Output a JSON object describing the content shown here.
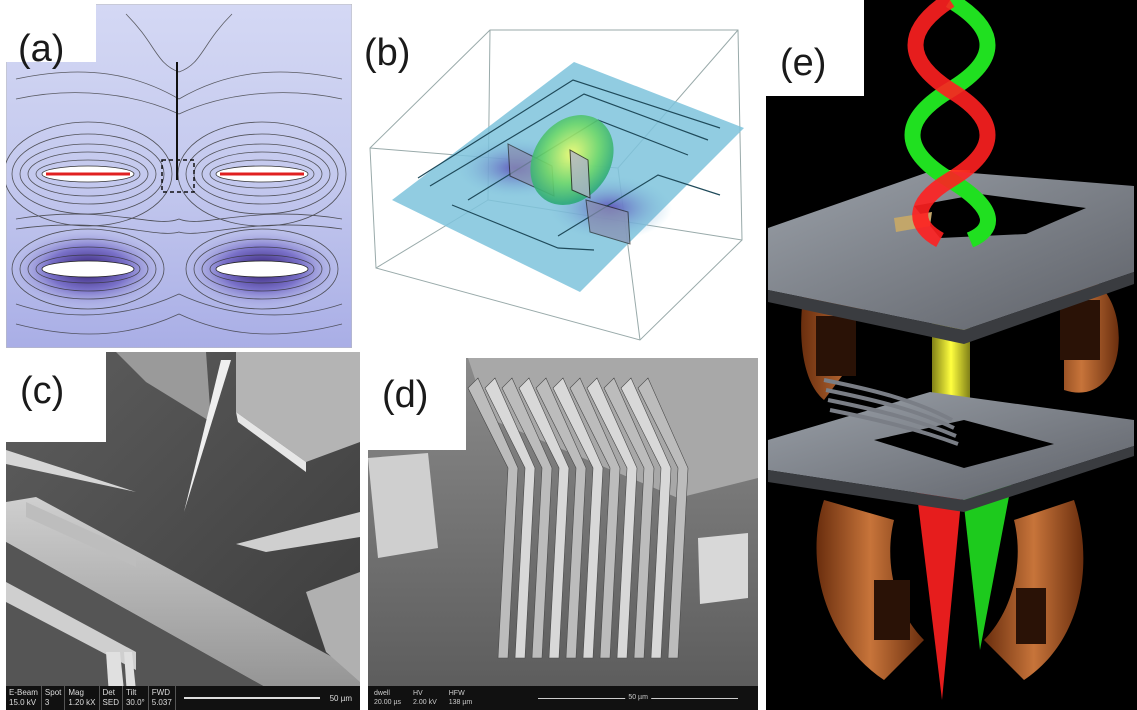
{
  "panels": {
    "a": {
      "label": "(a)"
    },
    "b": {
      "label": "(b)"
    },
    "c": {
      "label": "(c)",
      "sem_info": {
        "headers": [
          "E-Beam",
          "Spot",
          "Mag",
          "Det",
          "Tilt",
          "FWD"
        ],
        "values": [
          "15.0 kV",
          "3",
          "1.20 kX",
          "SED",
          "30.0°",
          "5.037"
        ],
        "scale": "50 µm"
      }
    },
    "d": {
      "label": "(d)",
      "sem_info": {
        "headers": [
          "dwell",
          "HV",
          "HFW"
        ],
        "values": [
          "20.00 µs",
          "2.00 kV",
          "138 µm"
        ],
        "scale": "50 µm"
      }
    },
    "e": {
      "label": "(e)"
    }
  },
  "colors": {
    "field_bg": "#c8cdf0",
    "electrode_red": "#e02020",
    "substrate_blue": "#7ec3dc",
    "beam_yellow": "#ffff30",
    "beam_red": "#ff2020",
    "beam_green": "#20e020",
    "copper": "#b8622a",
    "plate_grey": "#8a8d94"
  }
}
